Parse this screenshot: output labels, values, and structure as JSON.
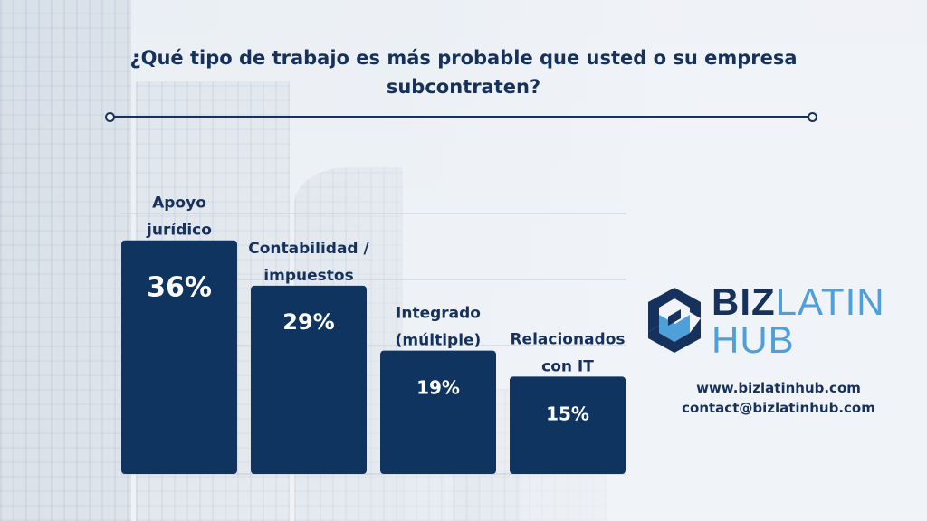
{
  "title": "¿Qué tipo de trabajo es más probable que usted o su empresa subcontraten?",
  "brand": {
    "biz": "BIZ",
    "latin": "LATIN",
    "hub": "HUB"
  },
  "contact": {
    "website": "www.bizlatinhub.com",
    "email": "contact@bizlatinhub.com"
  },
  "colors": {
    "bar": "#0f3460",
    "title": "#16325c",
    "brand_dark": "#16325c",
    "brand_light": "#4f9fd8",
    "bar_label": "#ffffff"
  },
  "chart_data": {
    "type": "bar",
    "title": "¿Qué tipo de trabajo es más probable que usted o su empresa subcontraten?",
    "categories": [
      [
        "Apoyo",
        "jurídico"
      ],
      [
        "Contabilidad /",
        "impuestos"
      ],
      [
        "Integrado",
        "(múltiple)"
      ],
      [
        "Relacionados",
        "con IT"
      ]
    ],
    "values": [
      36,
      29,
      19,
      15
    ],
    "value_labels": [
      "36%",
      "29%",
      "19%",
      "15%"
    ],
    "unit": "%",
    "ylim": [
      0,
      40
    ],
    "grid": true,
    "legend": "none"
  }
}
